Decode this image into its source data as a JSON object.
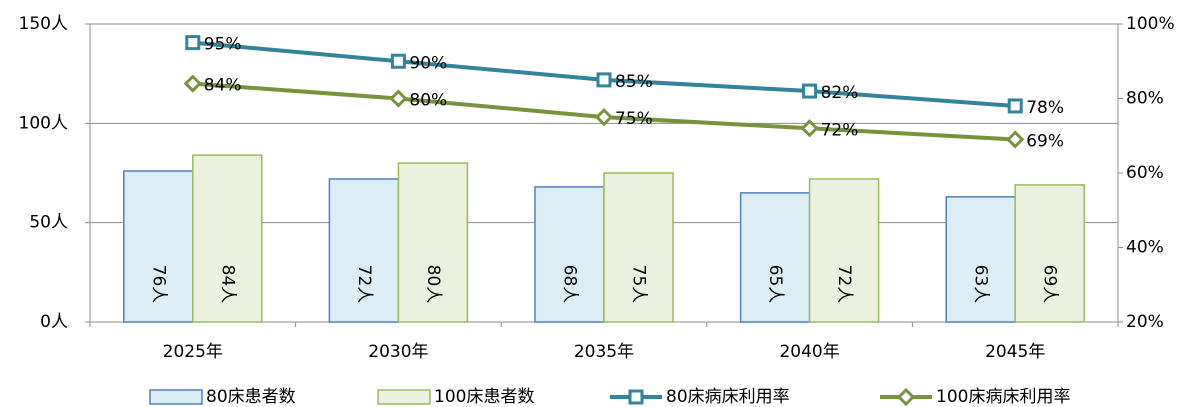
{
  "chart_data": {
    "type": "bar",
    "categories": [
      "2025年",
      "2030年",
      "2035年",
      "2040年",
      "2045年"
    ],
    "ylim": [
      0,
      150
    ],
    "yticks": [
      {
        "value": 0,
        "label": "0人"
      },
      {
        "value": 50,
        "label": "50人"
      },
      {
        "value": 100,
        "label": "100人"
      },
      {
        "value": 150,
        "label": "150人"
      }
    ],
    "y2lim": [
      20,
      100
    ],
    "y2ticks": [
      {
        "value": 20,
        "label": "20%"
      },
      {
        "value": 40,
        "label": "40%"
      },
      {
        "value": 60,
        "label": "60%"
      },
      {
        "value": 80,
        "label": "80%"
      },
      {
        "value": 100,
        "label": "100%"
      }
    ],
    "grid": true,
    "legend": "bottom",
    "series": [
      {
        "name": "80床患者数",
        "type": "bar",
        "color": "#dbeef6",
        "edge": "#4f81bd",
        "values": [
          76,
          72,
          68,
          65,
          63
        ],
        "value_labels": [
          "76人",
          "72人",
          "68人",
          "65人",
          "63人"
        ]
      },
      {
        "name": "100床患者数",
        "type": "bar",
        "color": "#ebf1de",
        "edge": "#9bbb59",
        "values": [
          84,
          80,
          75,
          72,
          69
        ],
        "value_labels": [
          "84人",
          "80人",
          "75人",
          "72人",
          "69人"
        ]
      },
      {
        "name": "80床病床利用率",
        "type": "line",
        "axis": "y2",
        "marker": "square",
        "color": "#31849b",
        "values": [
          95,
          90,
          85,
          82,
          78
        ],
        "value_labels": [
          "95%",
          "90%",
          "85%",
          "82%",
          "78%"
        ]
      },
      {
        "name": "100床病床利用率",
        "type": "line",
        "axis": "y2",
        "marker": "diamond",
        "color": "#77933c",
        "values": [
          84,
          80,
          75,
          72,
          69
        ],
        "value_labels": [
          "84%",
          "80%",
          "75%",
          "72%",
          "69%"
        ]
      }
    ]
  }
}
